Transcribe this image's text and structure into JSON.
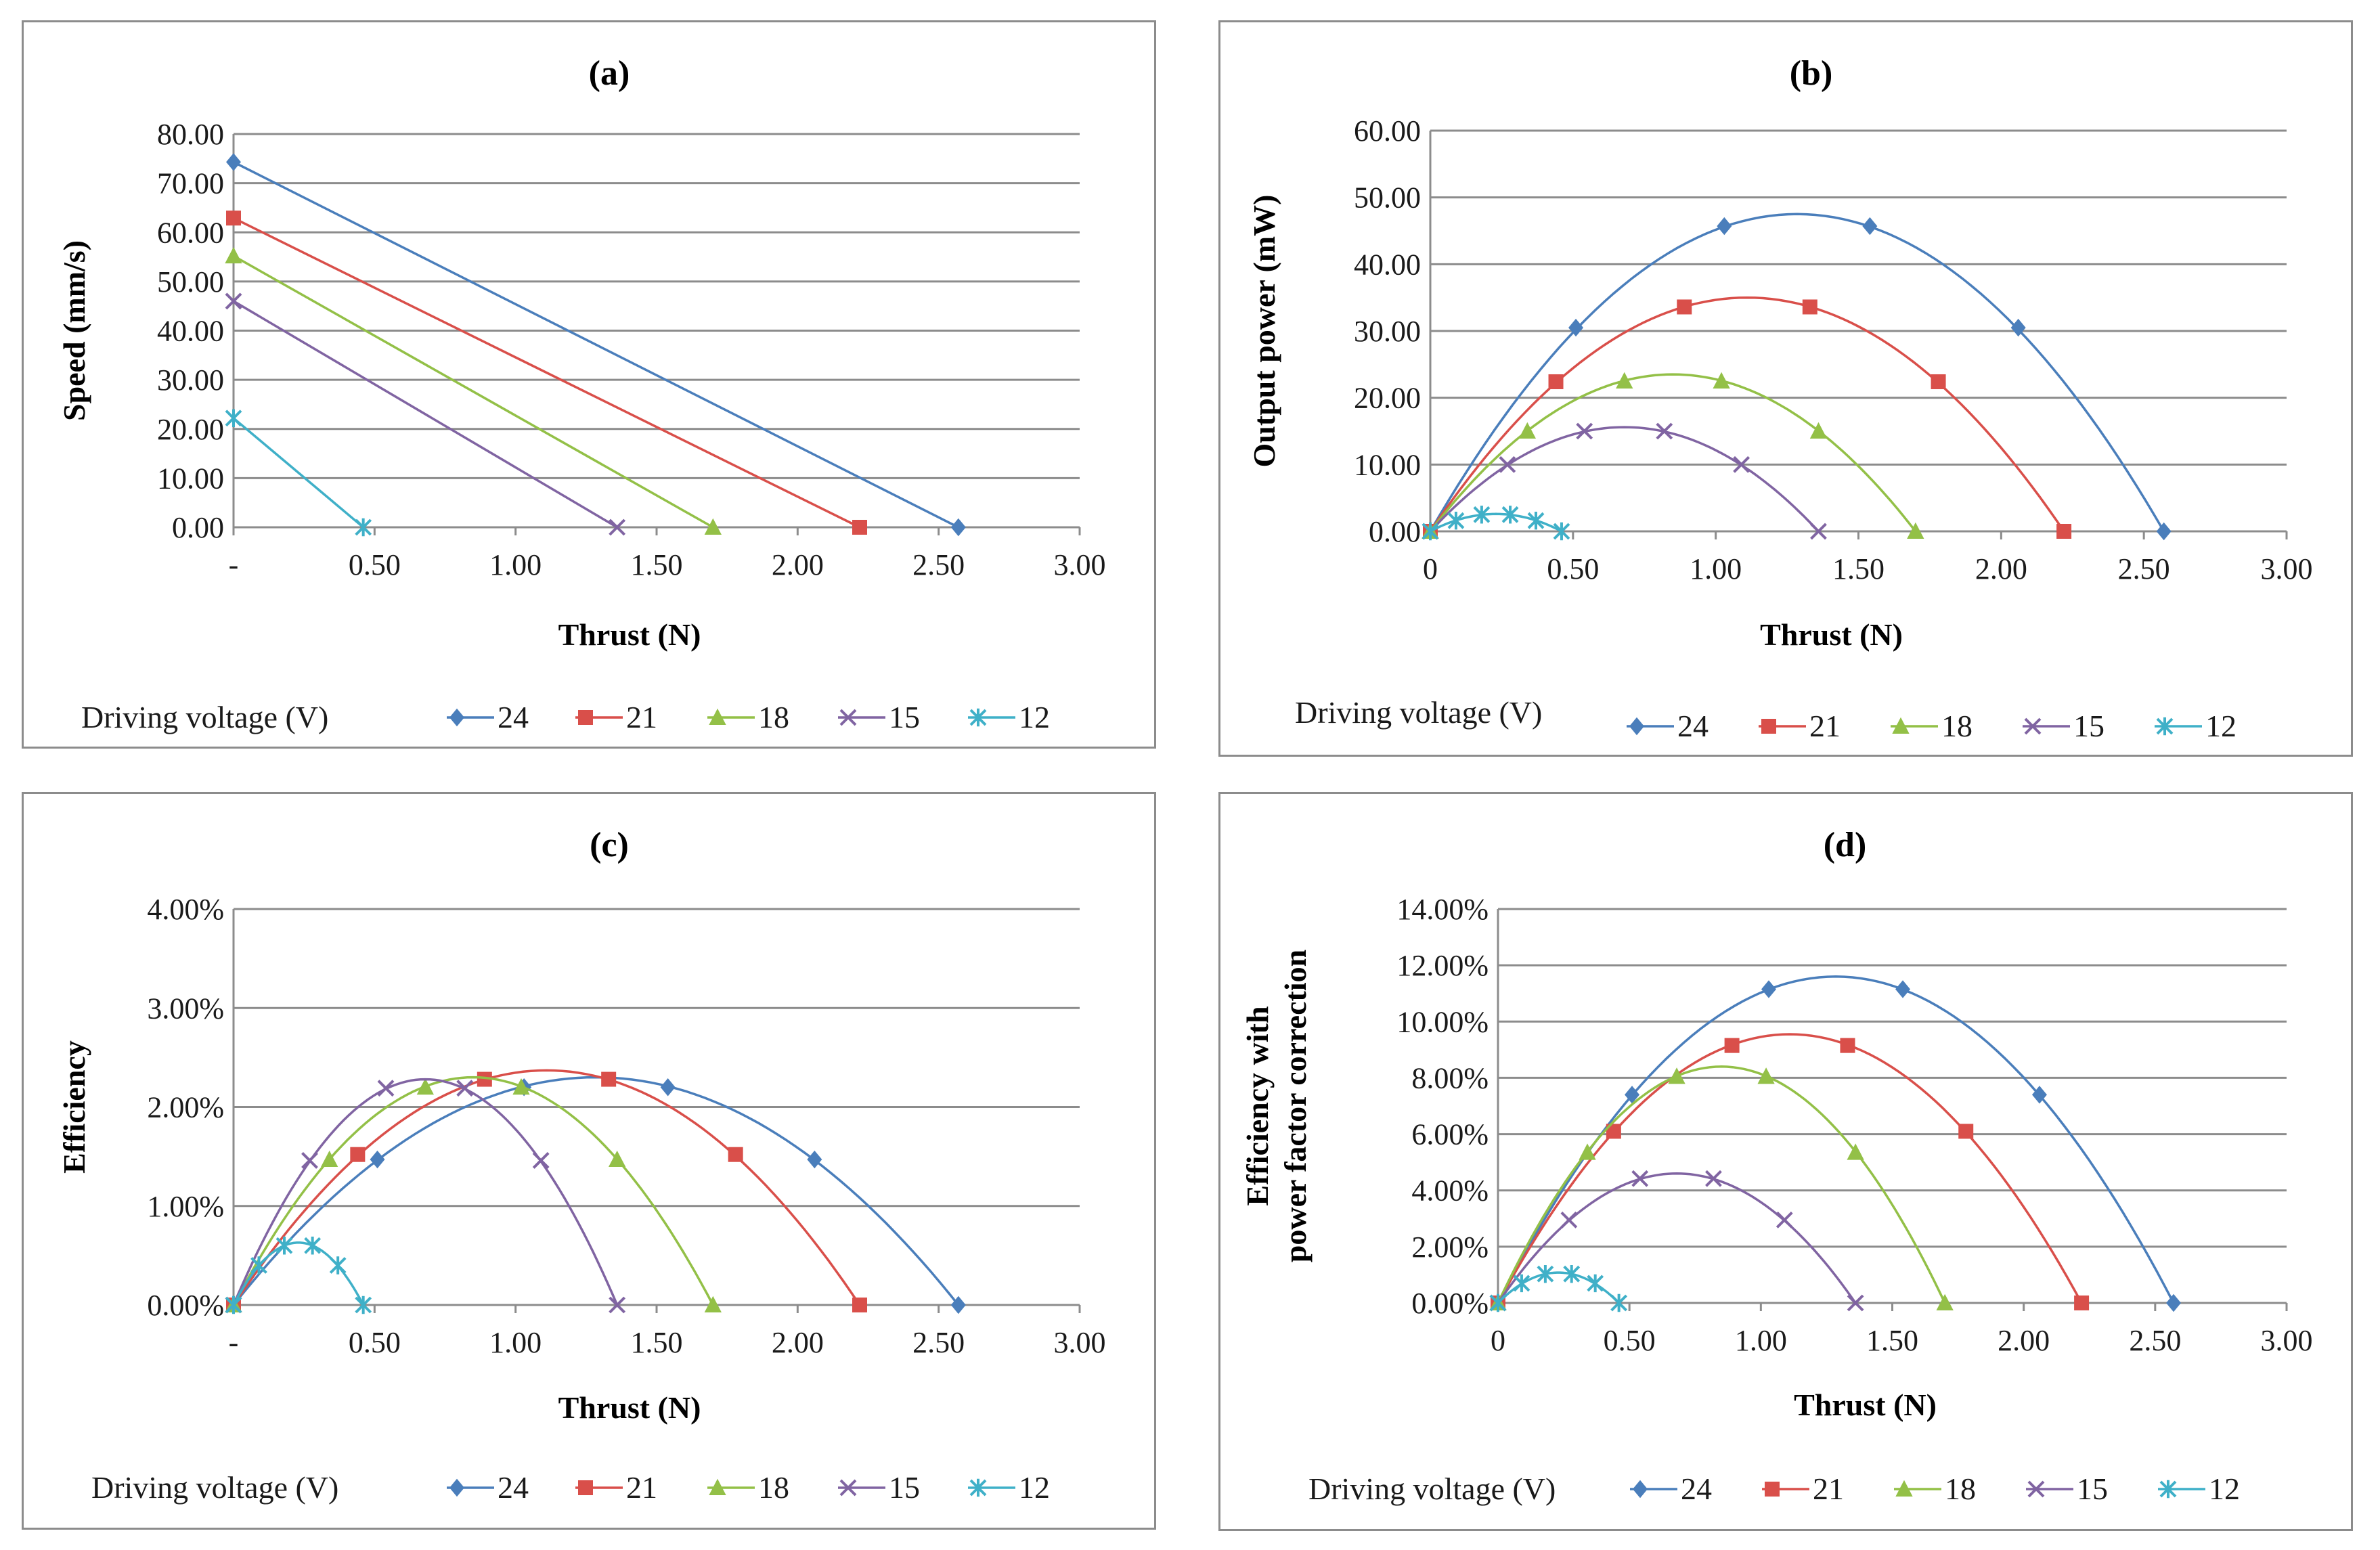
{
  "colors": {
    "24": "#4a7ebb",
    "21": "#d94f4a",
    "18": "#93c047",
    "15": "#8064a2",
    "12": "#3fb0c8"
  },
  "chart_data": [
    {
      "panel": "a",
      "type": "line",
      "title": "(a)",
      "xlabel": "Thrust (N)",
      "ylabel": "Speed (mm/s)",
      "xlim": [
        0,
        3
      ],
      "ylim": [
        0,
        80
      ],
      "xticks": [
        "-",
        "0.50",
        "1.00",
        "1.50",
        "2.00",
        "2.50",
        "3.00"
      ],
      "yticks": [
        "0.00",
        "10.00",
        "20.00",
        "30.00",
        "40.00",
        "50.00",
        "60.00",
        "70.00",
        "80.00"
      ],
      "legend_title": "Driving voltage (V)",
      "series": [
        {
          "name": "24",
          "marker": "diamond",
          "x": [
            0,
            2.57
          ],
          "y": [
            74.3,
            0
          ],
          "marker_x": [
            0,
            2.57
          ],
          "marker_y": [
            74.3,
            0
          ]
        },
        {
          "name": "21",
          "marker": "square",
          "x": [
            0,
            2.22
          ],
          "y": [
            62.9,
            0
          ],
          "marker_x": [
            0,
            2.22
          ],
          "marker_y": [
            62.9,
            0
          ]
        },
        {
          "name": "18",
          "marker": "triangle",
          "x": [
            0,
            1.7
          ],
          "y": [
            55.2,
            0
          ],
          "marker_x": [
            0,
            1.7
          ],
          "marker_y": [
            55.2,
            0
          ]
        },
        {
          "name": "15",
          "marker": "x",
          "x": [
            0,
            1.36
          ],
          "y": [
            46.0,
            0
          ],
          "marker_x": [
            0,
            1.36
          ],
          "marker_y": [
            46.0,
            0
          ]
        },
        {
          "name": "12",
          "marker": "star",
          "x": [
            0,
            0.46
          ],
          "y": [
            22.2,
            0
          ],
          "marker_x": [
            0,
            0.46
          ],
          "marker_y": [
            22.2,
            0
          ]
        }
      ]
    },
    {
      "panel": "b",
      "type": "line",
      "title": "(b)",
      "xlabel": "Thrust (N)",
      "ylabel": "Output power (mW)",
      "xlim": [
        0,
        3
      ],
      "ylim": [
        0,
        60
      ],
      "xticks": [
        "0",
        "0.50",
        "1.00",
        "1.50",
        "2.00",
        "2.50",
        "3.00"
      ],
      "yticks": [
        "0.00",
        "10.00",
        "20.00",
        "30.00",
        "40.00",
        "50.00",
        "60.00"
      ],
      "legend_title": "Driving voltage (V)",
      "series": [
        {
          "name": "24",
          "marker": "diamond",
          "peak": 47.5,
          "xmax": 2.57,
          "marker_x": [
            0,
            0.51,
            1.03,
            1.54,
            2.06,
            2.57
          ],
          "marker_y": [
            0,
            30.5,
            45.7,
            45.7,
            30.5,
            0
          ]
        },
        {
          "name": "21",
          "marker": "square",
          "peak": 35.0,
          "xmax": 2.22,
          "marker_x": [
            0,
            0.44,
            0.89,
            1.33,
            1.78,
            2.22
          ],
          "marker_y": [
            0,
            22.4,
            33.6,
            33.6,
            22.4,
            0
          ]
        },
        {
          "name": "18",
          "marker": "triangle",
          "peak": 23.5,
          "xmax": 1.7,
          "marker_x": [
            0,
            0.34,
            0.68,
            1.02,
            1.36,
            1.7
          ],
          "marker_y": [
            0,
            15.0,
            22.5,
            22.5,
            15.0,
            0
          ]
        },
        {
          "name": "15",
          "marker": "x",
          "peak": 15.6,
          "xmax": 1.36,
          "marker_x": [
            0,
            0.27,
            0.54,
            0.82,
            1.09,
            1.36
          ],
          "marker_y": [
            0,
            10.0,
            15.0,
            15.0,
            10.0,
            0
          ]
        },
        {
          "name": "12",
          "marker": "star",
          "peak": 2.6,
          "xmax": 0.46,
          "marker_x": [
            0,
            0.09,
            0.18,
            0.28,
            0.37,
            0.46
          ],
          "marker_y": [
            0,
            1.6,
            2.5,
            2.5,
            1.6,
            0
          ]
        }
      ]
    },
    {
      "panel": "c",
      "type": "line",
      "title": "(c)",
      "xlabel": "Thrust (N)",
      "ylabel": "Efficiency",
      "xlim": [
        0,
        3
      ],
      "ylim": [
        0,
        4
      ],
      "xticks": [
        "-",
        "0.50",
        "1.00",
        "1.50",
        "2.00",
        "2.50",
        "3.00"
      ],
      "yticks": [
        "0.00%",
        "1.00%",
        "2.00%",
        "3.00%",
        "4.00%"
      ],
      "legend_title": "Driving voltage (V)",
      "series": [
        {
          "name": "24",
          "marker": "diamond",
          "peak": 2.3,
          "xmax": 2.57,
          "marker_x": [
            0,
            0.51,
            1.03,
            1.54,
            2.06,
            2.57
          ],
          "marker_y": [
            0,
            1.47,
            2.2,
            2.2,
            1.47,
            0
          ]
        },
        {
          "name": "21",
          "marker": "square",
          "peak": 2.37,
          "xmax": 2.22,
          "marker_x": [
            0,
            0.44,
            0.89,
            1.33,
            1.78,
            2.22
          ],
          "marker_y": [
            0,
            1.52,
            2.28,
            2.28,
            1.52,
            0
          ]
        },
        {
          "name": "18",
          "marker": "triangle",
          "peak": 2.3,
          "xmax": 1.7,
          "marker_x": [
            0,
            0.34,
            0.68,
            1.02,
            1.36,
            1.7
          ],
          "marker_y": [
            0,
            1.47,
            2.2,
            2.2,
            1.47,
            0
          ]
        },
        {
          "name": "15",
          "marker": "x",
          "peak": 2.28,
          "xmax": 1.36,
          "marker_x": [
            0,
            0.27,
            0.54,
            0.82,
            1.09,
            1.36
          ],
          "marker_y": [
            0,
            1.46,
            2.19,
            2.19,
            1.46,
            0
          ]
        },
        {
          "name": "12",
          "marker": "star",
          "peak": 0.63,
          "xmax": 0.46,
          "marker_x": [
            0,
            0.09,
            0.18,
            0.28,
            0.37,
            0.46
          ],
          "marker_y": [
            0,
            0.4,
            0.6,
            0.6,
            0.4,
            0
          ]
        }
      ]
    },
    {
      "panel": "d",
      "type": "line",
      "title": "(d)",
      "xlabel": "Thrust (N)",
      "ylabel_lines": [
        "Efficiency with",
        "power factor correction"
      ],
      "xlim": [
        0,
        3
      ],
      "ylim": [
        0,
        14
      ],
      "xticks": [
        "0",
        "0.50",
        "1.00",
        "1.50",
        "2.00",
        "2.50",
        "3.00"
      ],
      "yticks": [
        "0.00%",
        "2.00%",
        "4.00%",
        "6.00%",
        "8.00%",
        "10.00%",
        "12.00%",
        "14.00%"
      ],
      "legend_title": "Driving voltage (V)",
      "series": [
        {
          "name": "24",
          "marker": "diamond",
          "peak": 11.6,
          "xmax": 2.57,
          "marker_x": [
            0,
            0.51,
            1.03,
            1.54,
            2.06,
            2.57
          ],
          "marker_y": [
            0,
            7.4,
            11.15,
            11.15,
            7.4,
            0
          ]
        },
        {
          "name": "21",
          "marker": "square",
          "peak": 9.55,
          "xmax": 2.22,
          "marker_x": [
            0,
            0.44,
            0.89,
            1.33,
            1.78,
            2.22
          ],
          "marker_y": [
            0,
            6.1,
            9.15,
            9.15,
            6.1,
            0
          ]
        },
        {
          "name": "18",
          "marker": "triangle",
          "peak": 8.4,
          "xmax": 1.7,
          "marker_x": [
            0,
            0.34,
            0.68,
            1.02,
            1.36,
            1.7
          ],
          "marker_y": [
            0,
            5.35,
            8.05,
            8.05,
            5.35,
            0
          ]
        },
        {
          "name": "15",
          "marker": "x",
          "peak": 4.6,
          "xmax": 1.36,
          "marker_x": [
            0,
            0.27,
            0.54,
            0.82,
            1.09,
            1.36
          ],
          "marker_y": [
            0,
            2.95,
            4.42,
            4.42,
            2.95,
            0
          ]
        },
        {
          "name": "12",
          "marker": "star",
          "peak": 1.08,
          "xmax": 0.46,
          "marker_x": [
            0,
            0.09,
            0.18,
            0.28,
            0.37,
            0.46
          ],
          "marker_y": [
            0,
            0.7,
            1.03,
            1.03,
            0.7,
            0
          ]
        }
      ]
    }
  ]
}
